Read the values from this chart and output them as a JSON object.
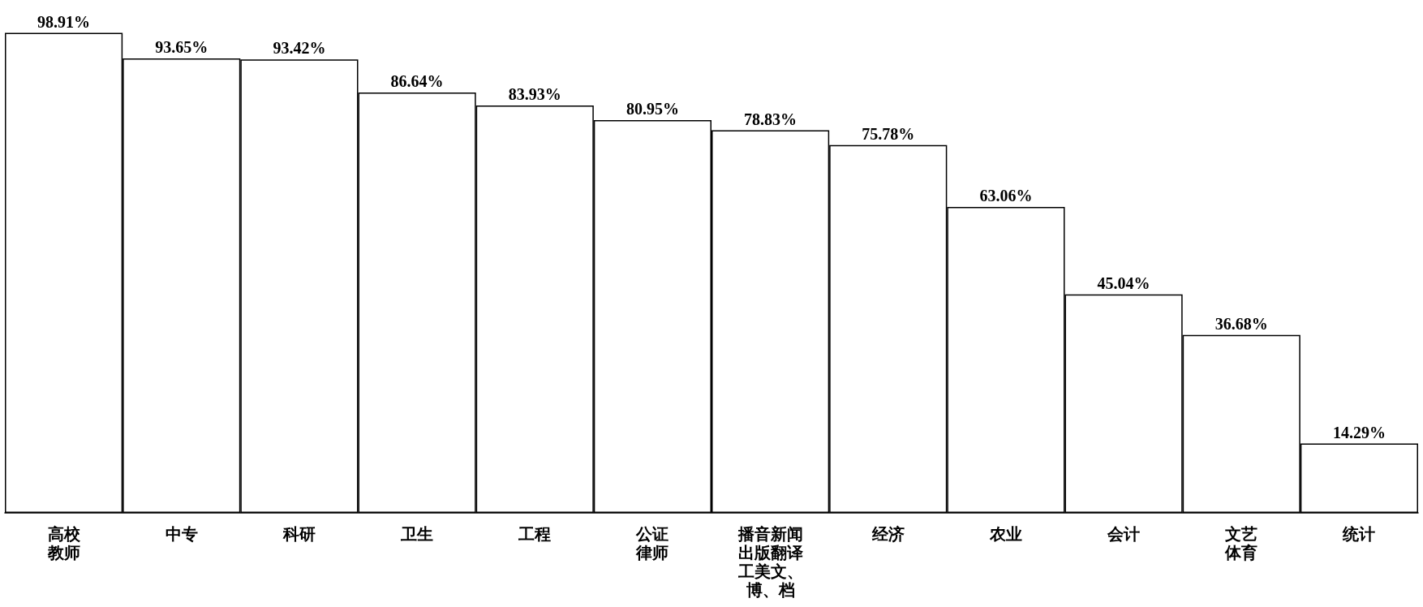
{
  "chart_data": {
    "type": "bar",
    "categories": [
      "高校教师",
      "中专",
      "科研",
      "卫生",
      "工程",
      "公证律师",
      "播音新闻出版翻译工美文、博、档",
      "经济",
      "农业",
      "会计",
      "文艺体育",
      "统计"
    ],
    "values": [
      98.91,
      93.65,
      93.42,
      86.64,
      83.93,
      80.95,
      78.83,
      75.78,
      63.06,
      45.04,
      36.68,
      14.29
    ],
    "value_labels": [
      "98.91%",
      "93.65%",
      "93.42%",
      "86.64%",
      "83.93%",
      "80.95%",
      "78.83%",
      "75.78%",
      "63.06%",
      "45.04%",
      "36.68%",
      "14.29%"
    ],
    "color": "#ffffff",
    "tick_labels": "x"
  }
}
